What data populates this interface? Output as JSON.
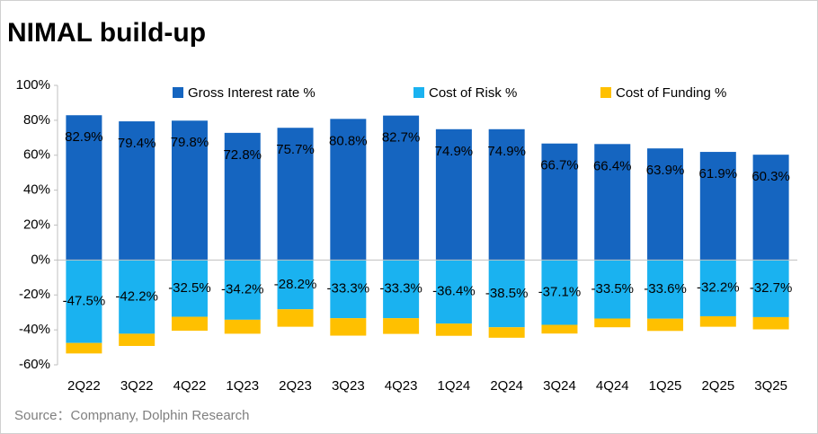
{
  "chart_data": {
    "type": "bar",
    "stacked": true,
    "title": "NIMAL build-up",
    "source": "Source：Compnany, Dolphin Research",
    "categories": [
      "2Q22",
      "3Q22",
      "4Q22",
      "1Q23",
      "2Q23",
      "3Q23",
      "4Q23",
      "1Q24",
      "2Q24",
      "3Q24",
      "4Q24",
      "1Q25",
      "2Q25",
      "3Q25"
    ],
    "series": [
      {
        "name": "Gross Interest rate %",
        "color": "#1565c0",
        "values": [
          82.9,
          79.4,
          79.8,
          72.8,
          75.7,
          80.8,
          82.7,
          74.9,
          74.9,
          66.7,
          66.4,
          63.9,
          61.9,
          60.3
        ],
        "value_labels": [
          "82.9%",
          "79.4%",
          "79.8%",
          "72.8%",
          "75.7%",
          "80.8%",
          "82.7%",
          "74.9%",
          "74.9%",
          "66.7%",
          "66.4%",
          "63.9%",
          "61.9%",
          "60.3%"
        ]
      },
      {
        "name": "Cost of Risk %",
        "color": "#1ab2f0",
        "values": [
          -47.5,
          -42.2,
          -32.5,
          -34.2,
          -28.2,
          -33.3,
          -33.3,
          -36.4,
          -38.5,
          -37.1,
          -33.5,
          -33.6,
          -32.2,
          -32.7
        ],
        "value_labels": [
          "-47.5%",
          "-42.2%",
          "-32.5%",
          "-34.2%",
          "-28.2%",
          "-33.3%",
          "-33.3%",
          "-36.4%",
          "-38.5%",
          "-37.1%",
          "-33.5%",
          "-33.6%",
          "-32.2%",
          "-32.7%"
        ]
      },
      {
        "name": "Cost of Funding %",
        "color": "#ffc000",
        "values": [
          -6,
          -7,
          -8,
          -8,
          -10,
          -10,
          -9,
          -7,
          -6,
          -5,
          -5,
          -7,
          -6,
          -7
        ]
      }
    ],
    "ylim": [
      -60,
      100
    ],
    "yticks": [
      {
        "value": -60,
        "label": "-60%"
      },
      {
        "value": -40,
        "label": "-40%"
      },
      {
        "value": -20,
        "label": "-20%"
      },
      {
        "value": 0,
        "label": "0%"
      },
      {
        "value": 20,
        "label": "20%"
      },
      {
        "value": 40,
        "label": "40%"
      },
      {
        "value": 60,
        "label": "60%"
      },
      {
        "value": 80,
        "label": "80%"
      },
      {
        "value": 100,
        "label": "100%"
      }
    ],
    "grid": false,
    "legend": "top"
  }
}
